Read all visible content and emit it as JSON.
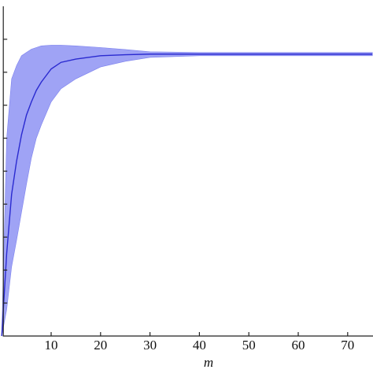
{
  "chart_data": {
    "type": "band-line",
    "x_label": "m",
    "x": [
      0,
      1,
      2,
      3,
      4,
      5,
      6,
      7,
      8,
      10,
      12,
      15,
      20,
      25,
      30,
      40,
      50,
      60,
      75
    ],
    "values": [
      0,
      0.25,
      0.43,
      0.53,
      0.61,
      0.67,
      0.71,
      0.745,
      0.77,
      0.81,
      0.83,
      0.84,
      0.85,
      0.853,
      0.855,
      0.855,
      0.855,
      0.855,
      0.855
    ],
    "upper": [
      0,
      0.6,
      0.78,
      0.82,
      0.85,
      0.86,
      0.87,
      0.875,
      0.88,
      0.882,
      0.882,
      0.88,
      0.875,
      0.869,
      0.862,
      0.86,
      0.86,
      0.86,
      0.86
    ],
    "lower": [
      0,
      0.08,
      0.21,
      0.29,
      0.375,
      0.46,
      0.54,
      0.6,
      0.64,
      0.71,
      0.75,
      0.78,
      0.816,
      0.833,
      0.845,
      0.85,
      0.85,
      0.85,
      0.85
    ],
    "line_color": "#2a2ad0",
    "band_color": "#9fa3f5",
    "xlim": [
      0,
      75
    ],
    "xticks": [
      10,
      20,
      30,
      40,
      50,
      60,
      70
    ],
    "ylim": [
      0,
      1
    ],
    "yticks": [
      0.1,
      0.2,
      0.3,
      0.4,
      0.5,
      0.6,
      0.7,
      0.8,
      0.9
    ]
  }
}
